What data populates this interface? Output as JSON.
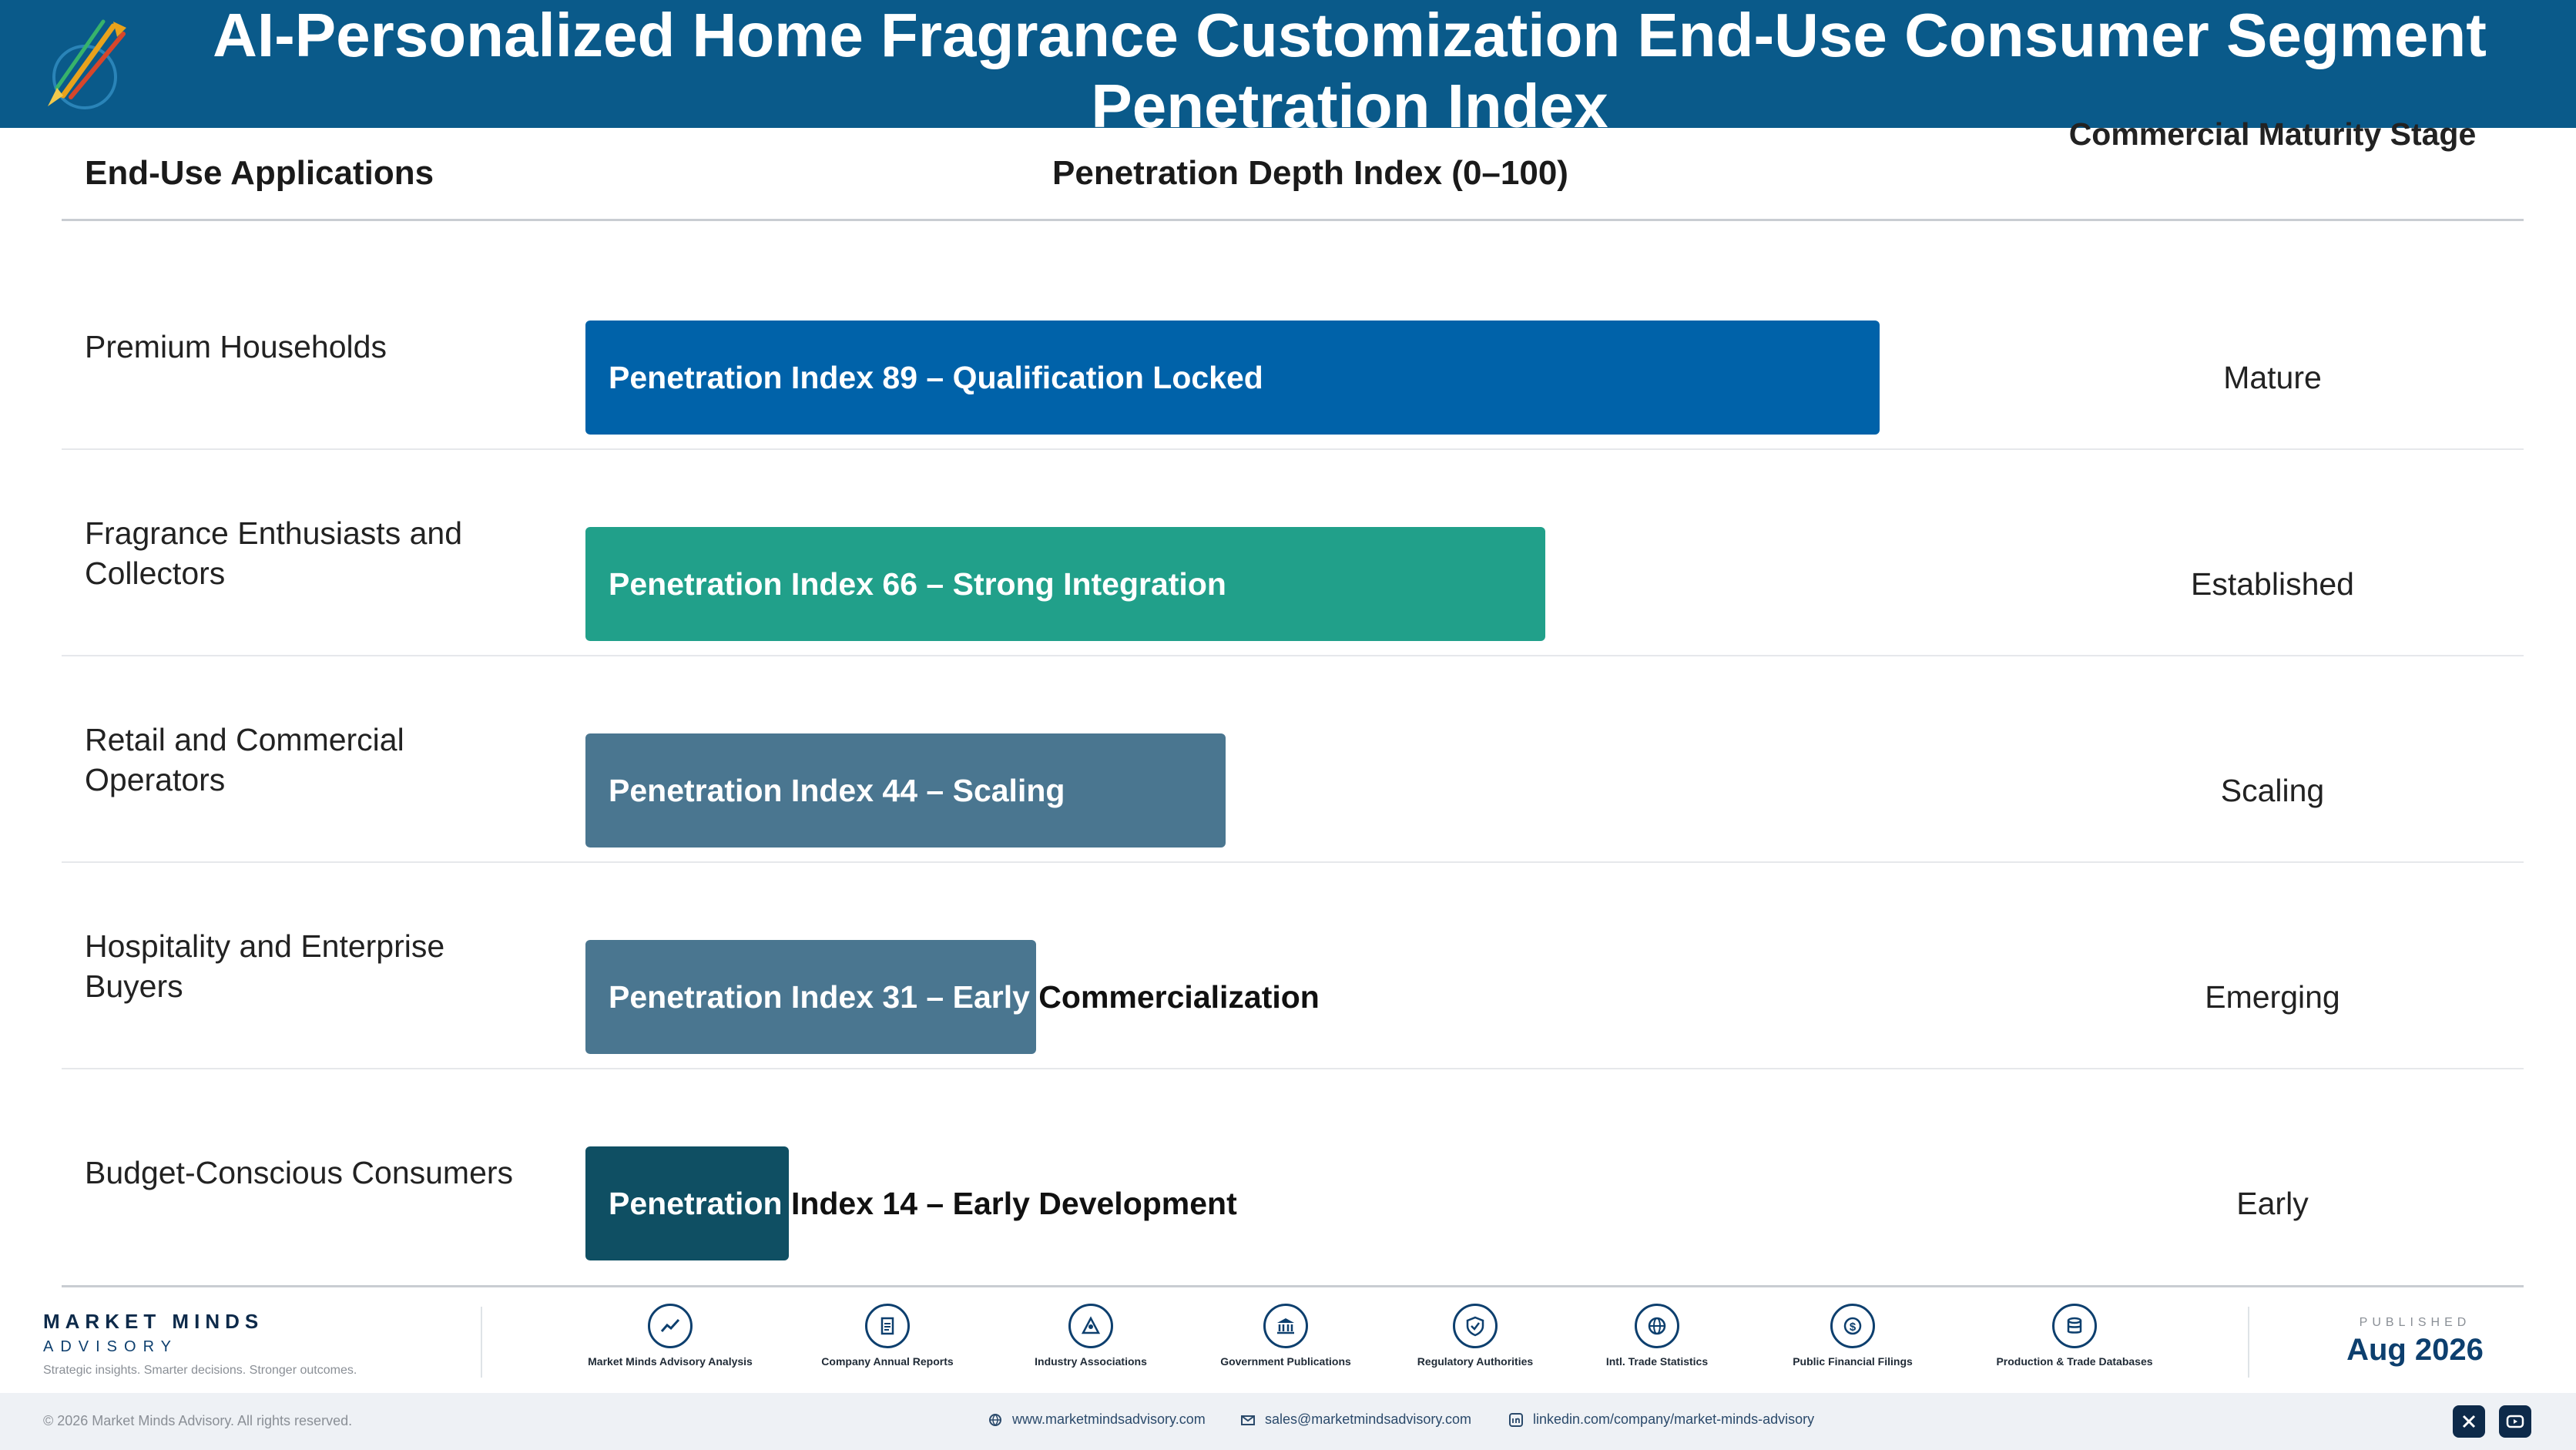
{
  "header": {
    "title": "AI-Personalized Home Fragrance Customization End-Use Consumer Segment Penetration Index"
  },
  "columns": {
    "applications": "End-Use Applications",
    "index": "Penetration Depth Index (0–100)",
    "stage": "Commercial Maturity Stage"
  },
  "chart_data": {
    "type": "bar",
    "orientation": "horizontal",
    "title": "AI-Personalized Home Fragrance Customization End-Use Consumer Segment Penetration Index",
    "xlabel": "Penetration Depth Index (0–100)",
    "ylabel": "End-Use Applications",
    "xlim": [
      0,
      100
    ],
    "grid": false,
    "categories": [
      "Premium Households",
      "Fragrance Enthusiasts and Collectors",
      "Retail and Commercial Operators",
      "Hospitality and Enterprise Buyers",
      "Budget-Conscious Consumers"
    ],
    "values": [
      89,
      66,
      44,
      31,
      14
    ],
    "bar_labels": [
      "Penetration Index 89 – Qualification Locked",
      "Penetration Index 66 – Strong Integration",
      "Penetration Index 44 – Scaling",
      "Penetration Index 31 – Early Commercialization",
      "Penetration Index 14 – Early Development"
    ],
    "stages": [
      "Mature",
      "Established",
      "Scaling",
      "Emerging",
      "Early"
    ],
    "colors": [
      "#0062a9",
      "#21a08a",
      "#4a7690",
      "#4a7690",
      "#0f4f63"
    ]
  },
  "footer": {
    "brand_name": "MARKET MINDS",
    "brand_sub": "ADVISORY",
    "brand_tagline": "Strategic insights. Smarter decisions. Stronger outcomes.",
    "sources": [
      {
        "icon": "trend-chart-icon",
        "label": "Market Minds Advisory Analysis"
      },
      {
        "icon": "document-icon",
        "label": "Company Annual Reports"
      },
      {
        "icon": "network-icon",
        "label": "Industry Associations"
      },
      {
        "icon": "government-building-icon",
        "label": "Government Publications"
      },
      {
        "icon": "shield-check-icon",
        "label": "Regulatory Authorities"
      },
      {
        "icon": "globe-icon",
        "label": "Intl. Trade Statistics"
      },
      {
        "icon": "dollar-coin-icon",
        "label": "Public Financial Filings"
      },
      {
        "icon": "database-icon",
        "label": "Production & Trade Databases"
      }
    ],
    "published_label": "PUBLISHED",
    "published_date": "Aug 2026",
    "copyright": "© 2026 Market Minds Advisory. All rights reserved.",
    "website": "www.marketmindsadvisory.com",
    "email": "sales@marketmindsadvisory.com",
    "linkedin": "linkedin.com/company/market-minds-advisory",
    "social": [
      {
        "icon": "x-icon"
      },
      {
        "icon": "youtube-icon"
      }
    ]
  }
}
